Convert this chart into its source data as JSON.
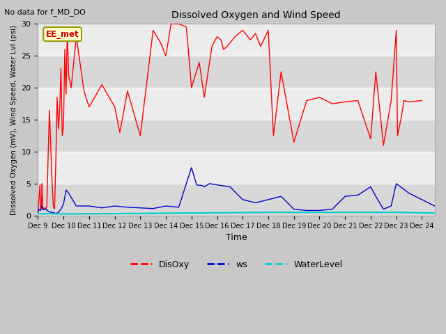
{
  "title": "Dissolved Oxygen and Wind Speed",
  "subtitle": "No data for f_MD_DO",
  "ylabel": "Dissolved Oxygen (mV), Wind Speed, Water Lvl (psi)",
  "xlabel": "Time",
  "ylim": [
    0,
    30
  ],
  "yticks": [
    0,
    5,
    10,
    15,
    20,
    25,
    30
  ],
  "xtick_labels": [
    "Dec 9",
    "Dec 10",
    "Dec 11",
    "Dec 12",
    "Dec 13",
    "Dec 14",
    "Dec 15",
    "Dec 16",
    "Dec 17",
    "Dec 18",
    "Dec 19",
    "Dec 20",
    "Dec 21",
    "Dec 22",
    "Dec 23",
    "Dec 24"
  ],
  "annotation_box": "EE_met",
  "fig_facecolor": "#c8c8c8",
  "ax_facecolor": "#e8e8e8",
  "disoxy_color": "#ff0000",
  "ws_color": "#0000cc",
  "wl_color": "#00cccc",
  "legend_labels": [
    "DisOxy",
    "ws",
    "WaterLevel"
  ],
  "disoxy_x": [
    0.0,
    0.05,
    0.08,
    0.1,
    0.12,
    0.14,
    0.16,
    0.18,
    0.2,
    0.25,
    0.3,
    0.35,
    0.4,
    0.45,
    0.5,
    0.55,
    0.6,
    0.65,
    0.7,
    0.75,
    0.8,
    0.85,
    0.9,
    0.95,
    1.0,
    1.05,
    1.1,
    1.15,
    1.2,
    1.3,
    1.5,
    1.8,
    2.0,
    2.5,
    3.0,
    3.2,
    3.5,
    4.0,
    4.5,
    4.8,
    5.0,
    5.2,
    5.5,
    5.8,
    6.0,
    6.3,
    6.5,
    6.8,
    7.0,
    7.15,
    7.25,
    7.4,
    7.5,
    7.7,
    8.0,
    8.3,
    8.5,
    8.7,
    9.0,
    9.2,
    9.5,
    10.0,
    10.5,
    11.0,
    11.5,
    12.0,
    12.5,
    13.0,
    13.2,
    13.5,
    13.8,
    14.0,
    14.05,
    14.2,
    14.3,
    14.5,
    15.0
  ],
  "disoxy_y": [
    0.5,
    3.0,
    4.8,
    1.5,
    1.0,
    1.8,
    5.0,
    2.5,
    1.0,
    1.2,
    1.0,
    1.5,
    9.5,
    16.5,
    11.0,
    5.5,
    1.5,
    1.0,
    8.5,
    18.5,
    13.5,
    16.5,
    23.0,
    12.5,
    14.0,
    26.0,
    19.0,
    29.0,
    22.0,
    20.0,
    28.0,
    19.5,
    17.0,
    20.5,
    17.0,
    13.0,
    19.5,
    12.5,
    29.0,
    27.0,
    25.0,
    30.0,
    30.0,
    29.5,
    20.0,
    24.0,
    18.5,
    26.5,
    28.0,
    27.5,
    26.0,
    26.5,
    27.0,
    28.0,
    29.0,
    27.5,
    28.5,
    26.5,
    29.0,
    12.5,
    22.5,
    11.5,
    18.0,
    18.5,
    17.5,
    17.8,
    18.0,
    12.0,
    22.5,
    11.0,
    18.0,
    29.0,
    12.5,
    15.5,
    18.0,
    17.8,
    18.0
  ],
  "ws_x": [
    0.0,
    0.05,
    0.1,
    0.15,
    0.2,
    0.3,
    0.4,
    0.5,
    0.6,
    0.7,
    0.8,
    0.9,
    1.0,
    1.1,
    1.2,
    1.5,
    2.0,
    2.5,
    3.0,
    3.5,
    4.0,
    4.5,
    5.0,
    5.5,
    6.0,
    6.2,
    6.4,
    6.5,
    6.7,
    7.0,
    7.5,
    8.0,
    8.5,
    9.0,
    9.5,
    10.0,
    10.5,
    11.0,
    11.5,
    12.0,
    12.5,
    13.0,
    13.2,
    13.5,
    13.8,
    14.0,
    14.5,
    15.0,
    15.5
  ],
  "ws_y": [
    0.5,
    1.0,
    0.8,
    1.5,
    0.9,
    1.0,
    0.7,
    0.5,
    0.5,
    0.3,
    0.5,
    1.0,
    1.8,
    4.0,
    3.5,
    1.5,
    1.5,
    1.2,
    1.5,
    1.3,
    1.2,
    1.1,
    1.5,
    1.3,
    7.5,
    4.8,
    4.7,
    4.5,
    5.0,
    4.8,
    4.5,
    2.5,
    2.0,
    2.5,
    3.0,
    1.0,
    0.8,
    0.8,
    1.0,
    3.0,
    3.2,
    4.5,
    3.0,
    1.0,
    1.5,
    5.0,
    3.5,
    2.5,
    1.5
  ],
  "wl_x": [
    0.0,
    1.0,
    3.0,
    6.0,
    9.0,
    12.0,
    14.0,
    15.5
  ],
  "wl_y": [
    0.3,
    0.25,
    0.3,
    0.4,
    0.5,
    0.5,
    0.5,
    0.4
  ]
}
